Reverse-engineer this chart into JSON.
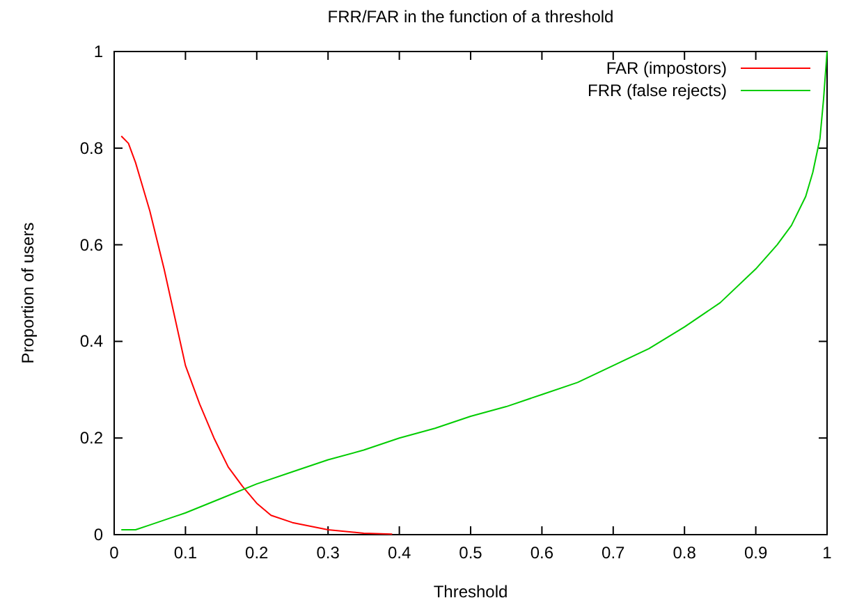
{
  "chart_data": {
    "type": "line",
    "title": "FRR/FAR in the function of a threshold",
    "xlabel": "Threshold",
    "ylabel": "Proportion of users",
    "xlim": [
      0,
      1
    ],
    "ylim": [
      0,
      1
    ],
    "xticks": [
      0,
      0.1,
      0.2,
      0.3,
      0.4,
      0.5,
      0.6,
      0.7,
      0.8,
      0.9,
      1
    ],
    "yticks": [
      0,
      0.2,
      0.4,
      0.6,
      0.8,
      1
    ],
    "grid": false,
    "legend": "top right",
    "marker": "none",
    "line_style": "solid",
    "series": [
      {
        "name": "FAR (impostors)",
        "color": "#ff0000",
        "x": [
          0.01,
          0.02,
          0.03,
          0.05,
          0.07,
          0.1,
          0.12,
          0.14,
          0.16,
          0.18,
          0.2,
          0.22,
          0.25,
          0.3,
          0.35,
          0.39
        ],
        "values": [
          0.825,
          0.81,
          0.77,
          0.67,
          0.55,
          0.35,
          0.27,
          0.2,
          0.14,
          0.1,
          0.065,
          0.04,
          0.025,
          0.01,
          0.003,
          0.001
        ]
      },
      {
        "name": "FRR (false rejects)",
        "color": "#00cc00",
        "x": [
          0.01,
          0.03,
          0.05,
          0.1,
          0.15,
          0.2,
          0.25,
          0.3,
          0.35,
          0.4,
          0.45,
          0.5,
          0.55,
          0.6,
          0.65,
          0.7,
          0.75,
          0.8,
          0.85,
          0.9,
          0.93,
          0.95,
          0.97,
          0.98,
          0.99,
          0.995,
          1
        ],
        "values": [
          0.01,
          0.01,
          0.02,
          0.045,
          0.075,
          0.105,
          0.13,
          0.155,
          0.175,
          0.2,
          0.22,
          0.245,
          0.265,
          0.29,
          0.315,
          0.35,
          0.385,
          0.43,
          0.48,
          0.55,
          0.6,
          0.64,
          0.7,
          0.75,
          0.82,
          0.9,
          1
        ]
      }
    ]
  }
}
